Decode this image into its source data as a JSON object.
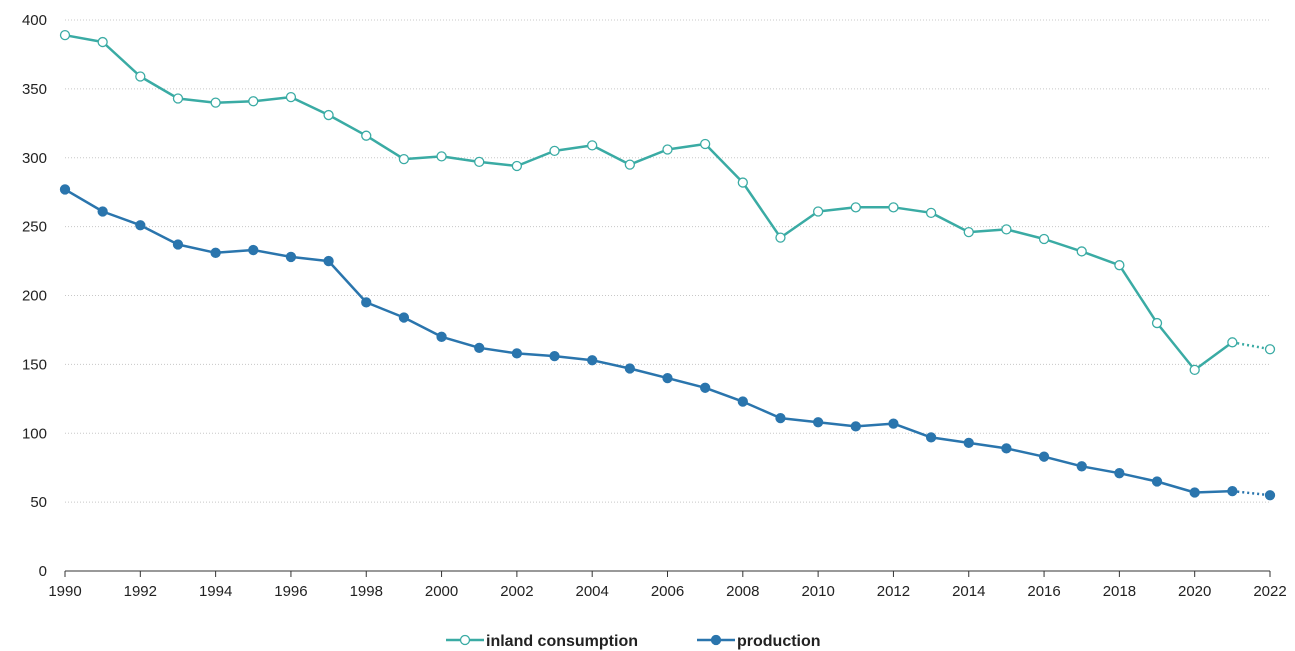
{
  "chart_data": {
    "type": "line",
    "title": "",
    "xlabel": "",
    "ylabel": "",
    "xlim": [
      1990,
      2022
    ],
    "ylim": [
      0,
      400
    ],
    "yticks": [
      0,
      50,
      100,
      150,
      200,
      250,
      300,
      350,
      400
    ],
    "xticks": [
      1990,
      1992,
      1994,
      1996,
      1998,
      2000,
      2002,
      2004,
      2006,
      2008,
      2010,
      2012,
      2014,
      2016,
      2018,
      2020,
      2022
    ],
    "grid": "horizontal",
    "legend": "bottom-center",
    "x": [
      1990,
      1991,
      1992,
      1993,
      1994,
      1995,
      1996,
      1997,
      1998,
      1999,
      2000,
      2001,
      2002,
      2003,
      2004,
      2005,
      2006,
      2007,
      2008,
      2009,
      2010,
      2011,
      2012,
      2013,
      2014,
      2015,
      2016,
      2017,
      2018,
      2019,
      2020,
      2021,
      2022
    ],
    "series": [
      {
        "name": "inland consumption",
        "color": "#3aaba4",
        "marker": "hollow-circle",
        "estimate_from_x": 2021,
        "values": [
          389,
          384,
          359,
          343,
          340,
          341,
          344,
          331,
          316,
          299,
          301,
          297,
          294,
          305,
          309,
          295,
          306,
          310,
          282,
          242,
          261,
          264,
          264,
          260,
          246,
          248,
          241,
          232,
          222,
          180,
          146,
          166,
          161
        ]
      },
      {
        "name": "production",
        "color": "#2a75ad",
        "marker": "filled-circle",
        "estimate_from_x": 2021,
        "values": [
          277,
          261,
          251,
          237,
          231,
          233,
          228,
          225,
          195,
          184,
          170,
          162,
          158,
          156,
          153,
          147,
          140,
          133,
          123,
          111,
          108,
          105,
          107,
          97,
          93,
          89,
          83,
          76,
          71,
          65,
          57,
          58,
          55
        ]
      }
    ]
  }
}
